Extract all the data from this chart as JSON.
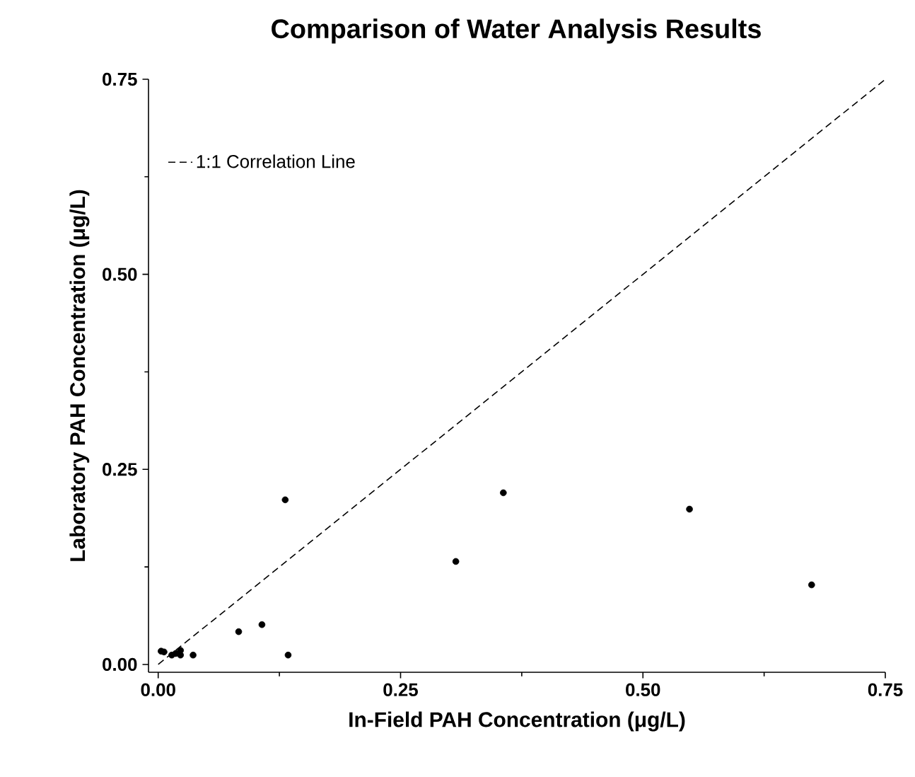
{
  "chart_data": {
    "type": "scatter",
    "title": "Comparison of Water Analysis Results",
    "xlabel": "In-Field PAH Concentration (μg/L)",
    "ylabel": "Laboratory PAH Concentration (μg/L)",
    "xlim": [
      -0.01,
      0.75
    ],
    "ylim": [
      -0.01,
      0.75
    ],
    "xticks": [
      {
        "value": 0,
        "label": "0.00"
      },
      {
        "value": 0.25,
        "label": "0.25"
      },
      {
        "value": 0.5,
        "label": "0.50"
      },
      {
        "value": 0.75,
        "label": "0.75"
      }
    ],
    "yticks": [
      {
        "value": 0,
        "label": "0.00"
      },
      {
        "value": 0.25,
        "label": "0.25"
      },
      {
        "value": 0.5,
        "label": "0.50"
      },
      {
        "value": 0.75,
        "label": "0.75"
      }
    ],
    "grid": false,
    "legend": "top left",
    "series": [
      {
        "type": "scatter",
        "color": "#000000",
        "marker": "circle",
        "x": [
          0.003,
          0.006,
          0.014,
          0.018,
          0.023,
          0.023,
          0.036,
          0.083,
          0.107,
          0.131,
          0.134,
          0.307,
          0.356,
          0.548,
          0.674
        ],
        "values": [
          0.017,
          0.016,
          0.012,
          0.014,
          0.018,
          0.012,
          0.012,
          0.042,
          0.051,
          0.211,
          0.012,
          0.132,
          0.22,
          0.199,
          0.102
        ]
      },
      {
        "type": "line",
        "name": "1:1 Correlation Line",
        "color": "#000000",
        "line_style": "dashed",
        "x": [
          0,
          0.75
        ],
        "values": [
          0,
          0.75
        ]
      }
    ]
  }
}
